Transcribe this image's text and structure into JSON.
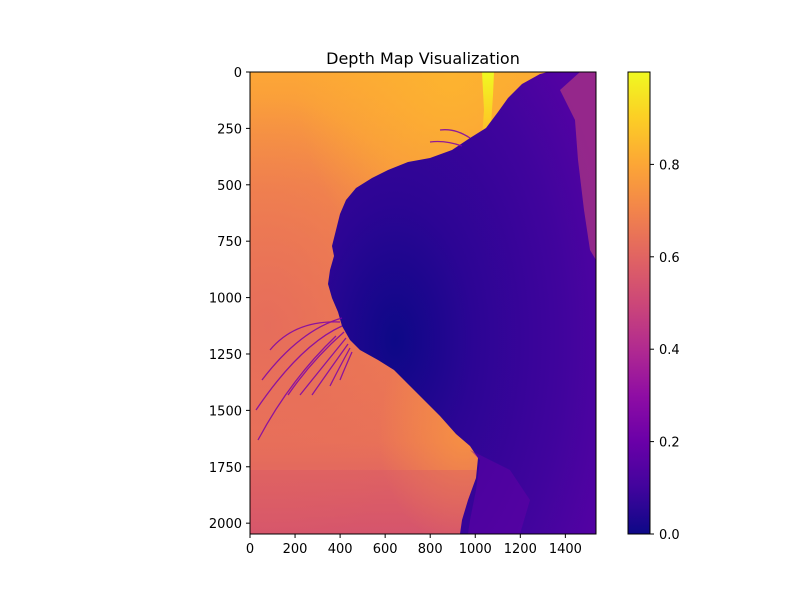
{
  "chart_data": {
    "type": "heatmap",
    "title": "Depth Map Visualization",
    "xlabel": "",
    "ylabel": "",
    "colormap": "plasma",
    "image_width": 1536,
    "image_height": 2048,
    "xlim": [
      0,
      1536
    ],
    "ylim": [
      2048,
      0
    ],
    "xticks": [
      0,
      200,
      400,
      600,
      800,
      1000,
      1200,
      1400
    ],
    "xtick_labels": [
      "0",
      "200",
      "400",
      "600",
      "800",
      "1000",
      "1200",
      "1400"
    ],
    "yticks": [
      0,
      250,
      500,
      750,
      1000,
      1250,
      1500,
      1750,
      2000
    ],
    "ytick_labels": [
      "0",
      "250",
      "500",
      "750",
      "1000",
      "1250",
      "1500",
      "1750",
      "2000"
    ],
    "colorbar": {
      "vmin": 0.0,
      "vmax": 1.0,
      "ticks": [
        0.0,
        0.2,
        0.4,
        0.6,
        0.8
      ],
      "tick_labels": [
        "0.0",
        "0.2",
        "0.4",
        "0.6",
        "0.8"
      ]
    },
    "grid": false,
    "description_regions": {
      "background_depth_range": [
        0.55,
        0.85
      ],
      "foreground_subject_depth_range": [
        0.0,
        0.25
      ],
      "bright_streak_depth": 0.97
    }
  }
}
